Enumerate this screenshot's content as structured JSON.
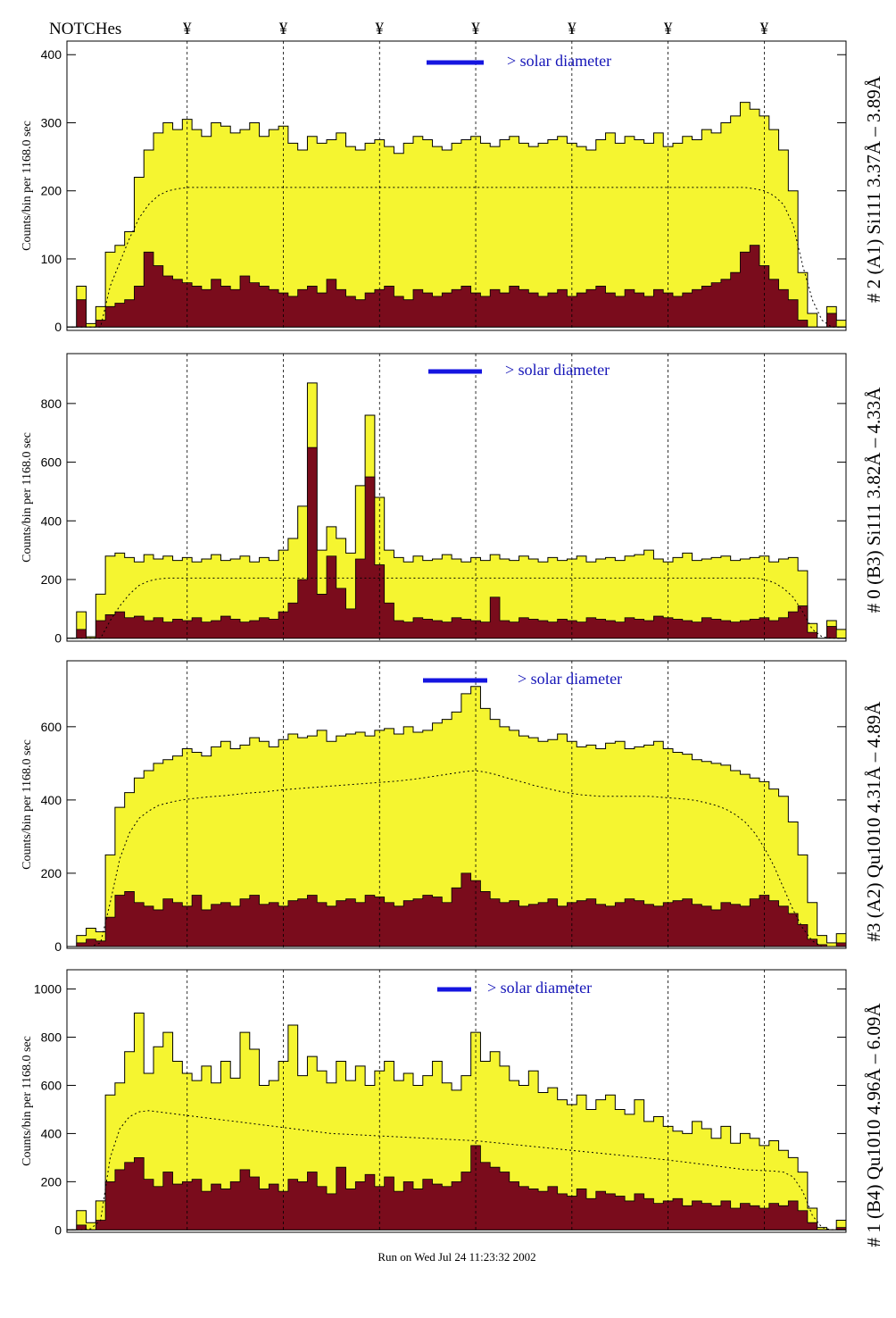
{
  "header": {
    "notches_label": "NOTCHes",
    "notch_symbol": "¥",
    "notch_bins": [
      12,
      22,
      32,
      42,
      52,
      62,
      72
    ]
  },
  "footer": {
    "run_text": "Run on Wed Jul 24 11:23:32 2002"
  },
  "colors": {
    "total_fill": "#f5f530",
    "high_fill": "#7a0c1c",
    "solar_bar": "#1515e0",
    "solar_text": "#1515b8"
  },
  "chart_data": [
    {
      "type": "histogram",
      "panel_label": "# 2 (A1) Si111  3.37Å – 3.89Å",
      "ylabel": "Counts/bin per   1168.0 sec",
      "yticks": [
        0,
        100,
        200,
        300,
        400
      ],
      "ylim": [
        -5,
        420
      ],
      "solar_label": "> solar diameter",
      "series": [
        {
          "name": "total",
          "values": [
            0,
            60,
            5,
            30,
            110,
            120,
            140,
            220,
            260,
            285,
            300,
            290,
            305,
            290,
            280,
            300,
            295,
            285,
            290,
            300,
            280,
            290,
            295,
            270,
            260,
            280,
            270,
            275,
            285,
            265,
            260,
            270,
            275,
            265,
            255,
            270,
            280,
            275,
            265,
            260,
            270,
            275,
            280,
            270,
            265,
            275,
            280,
            270,
            265,
            270,
            275,
            280,
            270,
            265,
            260,
            275,
            285,
            270,
            280,
            275,
            270,
            285,
            265,
            270,
            280,
            275,
            290,
            285,
            300,
            310,
            330,
            320,
            310,
            290,
            260,
            200,
            80,
            20,
            0,
            30,
            10
          ]
        },
        {
          "name": "high",
          "values": [
            0,
            40,
            0,
            10,
            30,
            35,
            40,
            60,
            110,
            90,
            75,
            70,
            65,
            60,
            55,
            70,
            60,
            55,
            75,
            65,
            60,
            55,
            50,
            45,
            55,
            60,
            50,
            70,
            55,
            45,
            40,
            50,
            55,
            60,
            45,
            40,
            55,
            50,
            45,
            50,
            55,
            60,
            50,
            45,
            55,
            50,
            60,
            55,
            50,
            45,
            50,
            55,
            45,
            50,
            55,
            60,
            50,
            45,
            55,
            50,
            45,
            55,
            50,
            45,
            50,
            55,
            60,
            65,
            70,
            80,
            110,
            120,
            90,
            70,
            55,
            40,
            10,
            0,
            0,
            20,
            0
          ]
        },
        {
          "name": "model",
          "values": [
            0,
            0,
            0,
            0,
            60,
            95,
            130,
            160,
            180,
            193,
            200,
            203,
            205,
            205,
            205,
            205,
            205,
            205,
            205,
            205,
            205,
            205,
            205,
            205,
            205,
            205,
            205,
            205,
            205,
            205,
            205,
            205,
            205,
            205,
            205,
            205,
            205,
            205,
            205,
            205,
            205,
            205,
            205,
            205,
            205,
            205,
            205,
            205,
            205,
            205,
            205,
            205,
            205,
            205,
            205,
            205,
            205,
            205,
            205,
            205,
            205,
            205,
            205,
            205,
            205,
            205,
            205,
            205,
            205,
            205,
            205,
            203,
            200,
            193,
            180,
            150,
            90,
            40,
            10,
            0,
            0
          ]
        }
      ]
    },
    {
      "type": "histogram",
      "panel_label": "# 0 (B3) Si111  3.82Å – 4.33Å",
      "ylabel": "Counts/bin per   1168.0 sec",
      "yticks": [
        0,
        200,
        400,
        600,
        800
      ],
      "ylim": [
        -10,
        970
      ],
      "solar_label": "> solar diameter",
      "series": [
        {
          "name": "total",
          "values": [
            0,
            90,
            5,
            150,
            280,
            290,
            275,
            260,
            285,
            270,
            280,
            265,
            275,
            260,
            270,
            285,
            265,
            270,
            280,
            260,
            275,
            265,
            300,
            340,
            450,
            870,
            300,
            380,
            340,
            290,
            520,
            760,
            480,
            300,
            275,
            260,
            280,
            265,
            270,
            285,
            270,
            260,
            275,
            265,
            285,
            270,
            265,
            280,
            270,
            260,
            275,
            265,
            270,
            280,
            260,
            270,
            275,
            265,
            280,
            285,
            300,
            270,
            260,
            275,
            290,
            265,
            270,
            275,
            280,
            265,
            270,
            275,
            280,
            260,
            270,
            275,
            230,
            50,
            0,
            60,
            30
          ]
        },
        {
          "name": "high",
          "values": [
            0,
            30,
            0,
            60,
            80,
            90,
            70,
            75,
            60,
            70,
            55,
            65,
            60,
            70,
            55,
            60,
            75,
            65,
            55,
            60,
            70,
            65,
            90,
            120,
            200,
            650,
            150,
            280,
            170,
            100,
            270,
            550,
            250,
            120,
            60,
            55,
            70,
            65,
            60,
            55,
            70,
            65,
            60,
            55,
            140,
            60,
            55,
            70,
            65,
            60,
            55,
            65,
            60,
            55,
            70,
            65,
            60,
            55,
            70,
            65,
            60,
            75,
            70,
            65,
            60,
            55,
            70,
            65,
            60,
            55,
            60,
            65,
            70,
            60,
            70,
            90,
            110,
            20,
            0,
            40,
            0
          ]
        },
        {
          "name": "model",
          "values": [
            0,
            0,
            0,
            0,
            60,
            110,
            150,
            180,
            195,
            202,
            205,
            205,
            205,
            205,
            205,
            205,
            205,
            205,
            205,
            205,
            205,
            205,
            205,
            205,
            205,
            205,
            205,
            205,
            205,
            205,
            205,
            205,
            205,
            205,
            205,
            205,
            205,
            205,
            205,
            205,
            205,
            205,
            205,
            205,
            205,
            205,
            205,
            205,
            205,
            205,
            205,
            205,
            205,
            205,
            205,
            205,
            205,
            205,
            205,
            205,
            205,
            205,
            205,
            205,
            205,
            205,
            205,
            205,
            205,
            205,
            205,
            205,
            200,
            190,
            170,
            140,
            90,
            30,
            5,
            0,
            0
          ]
        }
      ]
    },
    {
      "type": "histogram",
      "panel_label": "#3 (A2) Qu1010  4.31Å – 4.89Å",
      "ylabel": "Counts/bin per   1168.0 sec",
      "yticks": [
        0,
        200,
        400,
        600
      ],
      "ylim": [
        -5,
        780
      ],
      "solar_label": "> solar diameter",
      "series": [
        {
          "name": "total",
          "values": [
            0,
            30,
            50,
            40,
            250,
            380,
            420,
            460,
            480,
            500,
            510,
            520,
            540,
            530,
            520,
            545,
            560,
            540,
            550,
            570,
            560,
            545,
            565,
            580,
            570,
            575,
            590,
            560,
            575,
            580,
            585,
            575,
            590,
            595,
            580,
            600,
            585,
            590,
            610,
            620,
            640,
            690,
            710,
            650,
            620,
            600,
            590,
            575,
            570,
            560,
            565,
            580,
            560,
            545,
            550,
            540,
            555,
            560,
            540,
            545,
            550,
            560,
            540,
            530,
            525,
            510,
            505,
            500,
            495,
            480,
            470,
            460,
            450,
            430,
            410,
            340,
            250,
            120,
            30,
            10,
            35
          ]
        },
        {
          "name": "high",
          "values": [
            0,
            10,
            20,
            15,
            80,
            140,
            150,
            120,
            110,
            100,
            130,
            120,
            110,
            140,
            100,
            115,
            120,
            110,
            130,
            140,
            115,
            120,
            110,
            125,
            130,
            140,
            120,
            110,
            125,
            130,
            120,
            140,
            135,
            120,
            110,
            125,
            130,
            140,
            135,
            120,
            160,
            200,
            180,
            150,
            130,
            120,
            125,
            110,
            115,
            120,
            130,
            110,
            120,
            125,
            130,
            115,
            110,
            120,
            130,
            125,
            115,
            110,
            120,
            125,
            130,
            115,
            110,
            100,
            120,
            115,
            110,
            130,
            140,
            125,
            110,
            90,
            60,
            20,
            5,
            0,
            10
          ]
        },
        {
          "name": "model",
          "values": [
            0,
            0,
            0,
            10,
            120,
            240,
            310,
            350,
            370,
            385,
            392,
            398,
            402,
            405,
            408,
            410,
            412,
            415,
            418,
            420,
            422,
            425,
            428,
            430,
            432,
            434,
            436,
            438,
            440,
            442,
            444,
            446,
            448,
            450,
            452,
            455,
            458,
            462,
            466,
            470,
            474,
            478,
            480,
            476,
            470,
            462,
            455,
            448,
            440,
            434,
            428,
            422,
            418,
            414,
            412,
            410,
            410,
            410,
            410,
            410,
            410,
            408,
            406,
            404,
            402,
            398,
            392,
            385,
            375,
            360,
            340,
            310,
            270,
            220,
            160,
            100,
            50,
            15,
            0,
            0,
            0
          ]
        }
      ]
    },
    {
      "type": "histogram",
      "panel_label": "# 1 (B4) Qu1010 4.96Å – 6.09Å",
      "ylabel": "Counts/bin per   1168.0 sec",
      "yticks": [
        0,
        200,
        400,
        600,
        800,
        1000
      ],
      "ylim": [
        -10,
        1080
      ],
      "solar_label": "> solar diameter",
      "series": [
        {
          "name": "total",
          "values": [
            0,
            80,
            30,
            120,
            560,
            610,
            740,
            900,
            650,
            760,
            820,
            700,
            650,
            620,
            680,
            610,
            700,
            630,
            820,
            750,
            600,
            620,
            700,
            850,
            640,
            720,
            660,
            610,
            700,
            620,
            680,
            600,
            660,
            700,
            620,
            650,
            600,
            640,
            700,
            610,
            580,
            640,
            820,
            700,
            740,
            680,
            620,
            600,
            660,
            570,
            590,
            540,
            520,
            560,
            500,
            540,
            560,
            500,
            480,
            540,
            450,
            470,
            430,
            410,
            400,
            450,
            420,
            380,
            430,
            360,
            400,
            380,
            350,
            370,
            330,
            300,
            240,
            90,
            10,
            0,
            40
          ]
        },
        {
          "name": "high",
          "values": [
            0,
            20,
            0,
            40,
            200,
            250,
            280,
            300,
            210,
            180,
            240,
            190,
            200,
            210,
            160,
            190,
            170,
            200,
            250,
            220,
            170,
            190,
            160,
            210,
            200,
            240,
            180,
            150,
            260,
            170,
            200,
            230,
            180,
            220,
            160,
            200,
            170,
            210,
            190,
            180,
            200,
            240,
            350,
            280,
            260,
            240,
            200,
            180,
            170,
            160,
            180,
            150,
            140,
            170,
            130,
            160,
            150,
            140,
            120,
            150,
            130,
            110,
            120,
            130,
            100,
            120,
            110,
            100,
            120,
            90,
            110,
            100,
            90,
            110,
            100,
            120,
            80,
            30,
            0,
            0,
            10
          ]
        },
        {
          "name": "model",
          "values": [
            0,
            0,
            5,
            40,
            300,
            420,
            470,
            490,
            495,
            490,
            485,
            480,
            475,
            470,
            465,
            460,
            455,
            450,
            445,
            440,
            435,
            430,
            425,
            420,
            415,
            410,
            405,
            400,
            398,
            396,
            394,
            392,
            390,
            388,
            386,
            384,
            382,
            380,
            378,
            376,
            374,
            372,
            370,
            366,
            362,
            358,
            354,
            350,
            346,
            342,
            338,
            334,
            330,
            326,
            322,
            318,
            314,
            310,
            306,
            302,
            298,
            294,
            290,
            285,
            280,
            275,
            270,
            265,
            260,
            255,
            250,
            248,
            246,
            244,
            240,
            220,
            160,
            60,
            10,
            0,
            0
          ]
        }
      ]
    }
  ]
}
